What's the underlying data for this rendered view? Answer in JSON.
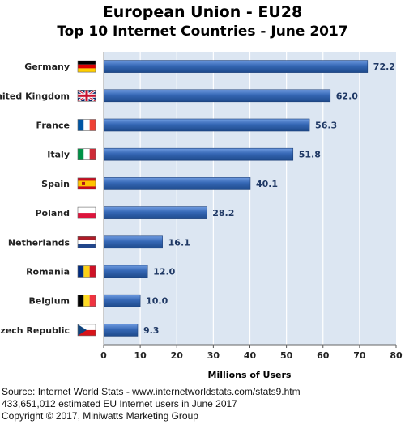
{
  "chart_data": {
    "type": "bar",
    "orientation": "horizontal",
    "title": "European Union - EU28",
    "subtitle": "Top 10 Internet Countries - June 2017",
    "xlabel": "Millions of Users",
    "ylabel": "",
    "xlim": [
      0,
      80
    ],
    "xticks": [
      0,
      10,
      20,
      30,
      40,
      50,
      60,
      70,
      80
    ],
    "grid": true,
    "categories": [
      "Germany",
      "United Kingdom",
      "France",
      "Italy",
      "Spain",
      "Poland",
      "Netherlands",
      "Romania",
      "Belgium",
      "Czech Republic"
    ],
    "values": [
      72.2,
      62.0,
      56.3,
      51.8,
      40.1,
      28.2,
      16.1,
      12.0,
      10.0,
      9.3
    ],
    "value_labels": [
      "72.2",
      "62.0",
      "56.3",
      "51.8",
      "40.1",
      "28.2",
      "16.1",
      "12.0",
      "10.0",
      "9.3"
    ],
    "flags": [
      "flag-germany",
      "flag-united-kingdom",
      "flag-france",
      "flag-italy",
      "flag-spain",
      "flag-poland",
      "flag-netherlands",
      "flag-romania",
      "flag-belgium",
      "flag-czech-republic"
    ],
    "colors": {
      "bar": "#2e5fa8",
      "bar_light": "#5b8ed6",
      "plot_bg": "#dce6f2",
      "grid": "#ffffff",
      "label": "#1f3864"
    }
  },
  "footer": {
    "source": "Source: Internet World Stats  -  www.internetworldstats.com/stats9.htm",
    "estimate": "433,651,012 estimated EU Internet users in June 2017",
    "copyright": "Copyright © 2017, Miniwatts Marketing Group"
  }
}
